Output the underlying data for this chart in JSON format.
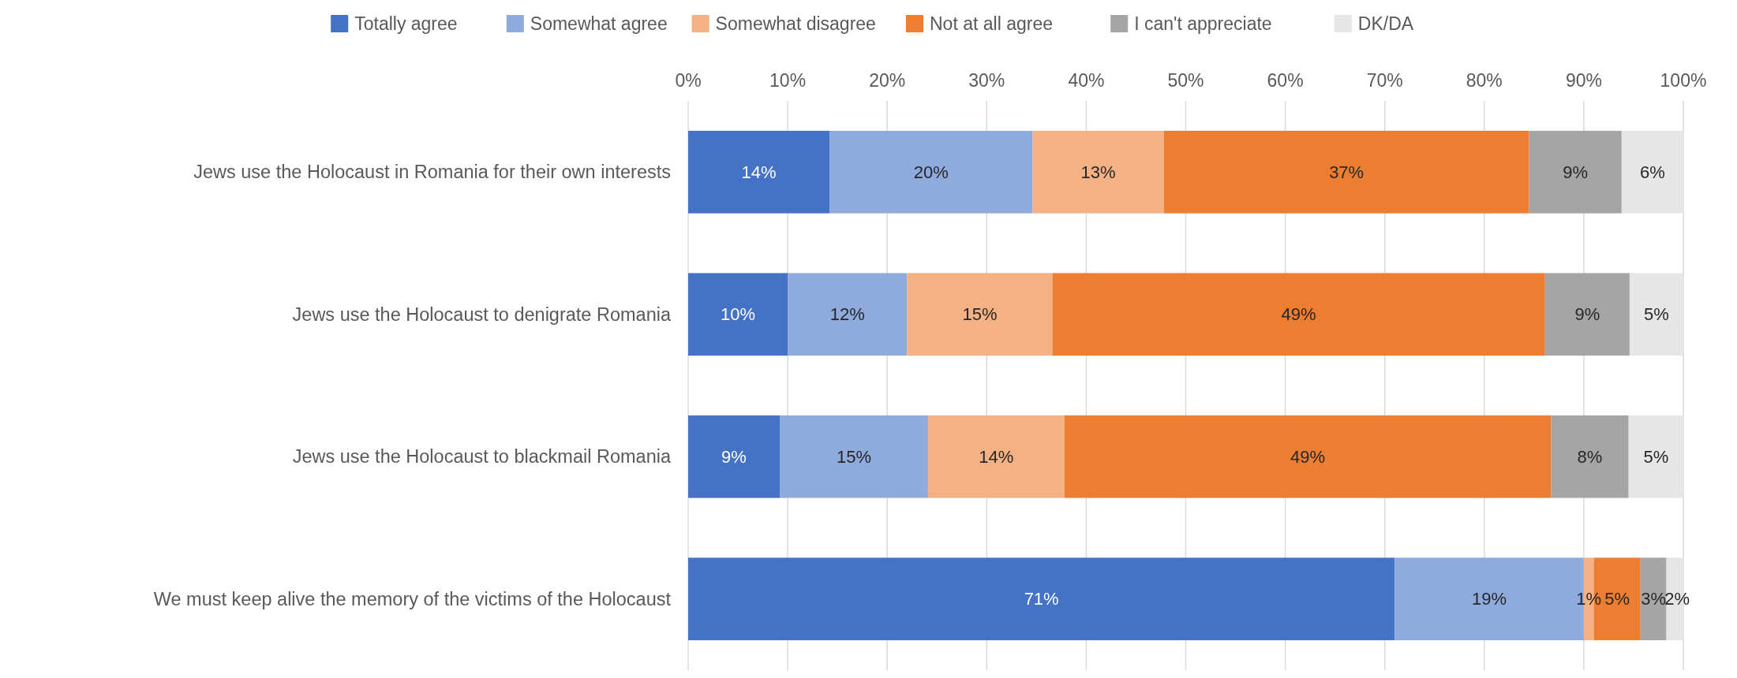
{
  "chart_data": {
    "type": "bar",
    "orientation": "horizontal",
    "stacked": true,
    "categories": [
      "Jews use the Holocaust in Romania for their own interests",
      "Jews use the Holocaust to denigrate Romania",
      "Jews use the Holocaust to blackmail Romania",
      "We must keep alive the memory of the victims of the Holocaust"
    ],
    "series": [
      {
        "name": "Totally agree",
        "color": "#4472c4",
        "values": [
          14.2,
          10.0,
          9.2,
          71.0
        ],
        "value_labels": [
          "14%",
          "10%",
          "9%",
          "71%"
        ]
      },
      {
        "name": "Somewhat agree",
        "color": "#8faadc",
        "values": [
          20.4,
          12.0,
          14.9,
          19.0
        ],
        "value_labels": [
          "20%",
          "12%",
          "15%",
          "19%"
        ]
      },
      {
        "name": "Somewhat disagree",
        "color": "#f4b183",
        "values": [
          13.2,
          14.6,
          13.7,
          1.0
        ],
        "value_labels": [
          "13%",
          "15%",
          "14%",
          "1%"
        ]
      },
      {
        "name": "Not at all agree",
        "color": "#ed7d31",
        "values": [
          36.7,
          49.5,
          48.9,
          4.7
        ],
        "value_labels": [
          "37%",
          "49%",
          "49%",
          "5%"
        ]
      },
      {
        "name": "I can't appreciate",
        "color": "#a5a5a5",
        "values": [
          9.3,
          8.5,
          7.8,
          2.6
        ],
        "value_labels": [
          "9%",
          "9%",
          "8%",
          "3%"
        ]
      },
      {
        "name": "DK/DA",
        "color": "#e7e6e6",
        "values": [
          6.2,
          5.4,
          5.5,
          1.7
        ],
        "value_labels": [
          "6%",
          "5%",
          "5%",
          "2%"
        ]
      }
    ],
    "xlim": [
      0,
      100
    ],
    "xticks": [
      {
        "value": 0,
        "label": "0%"
      },
      {
        "value": 10,
        "label": "10%"
      },
      {
        "value": 20,
        "label": "20%"
      },
      {
        "value": 30,
        "label": "30%"
      },
      {
        "value": 40,
        "label": "40%"
      },
      {
        "value": 50,
        "label": "50%"
      },
      {
        "value": 60,
        "label": "60%"
      },
      {
        "value": 70,
        "label": "70%"
      },
      {
        "value": 80,
        "label": "80%"
      },
      {
        "value": 90,
        "label": "90%"
      },
      {
        "value": 100,
        "label": "100%"
      }
    ],
    "grid": "x",
    "legend": "top"
  }
}
